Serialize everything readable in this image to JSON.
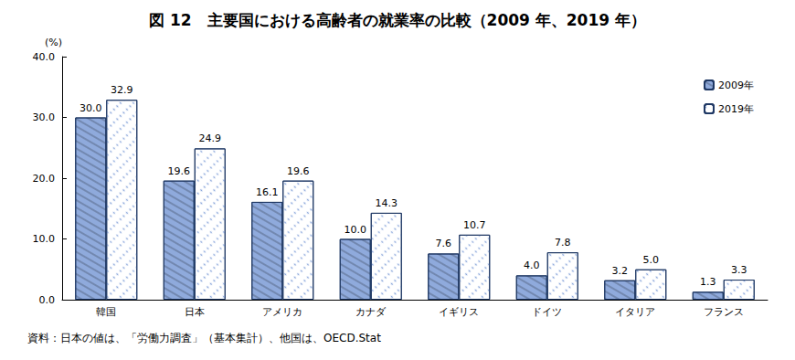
{
  "chart_data": {
    "type": "bar",
    "title": "図 12　主要国における高齢者の就業率の比較（2009 年、2019 年）",
    "ylabel": "(%)",
    "annotations": [
      "資料：日本の値は、「労働力調査」（基本集計）、他国は、OECD.Stat"
    ],
    "categories": [
      "韓国",
      "日本",
      "アメリカ",
      "カナダ",
      "イギリス",
      "ドイツ",
      "イタリア",
      "フランス"
    ],
    "series": [
      {
        "name": "2009年",
        "color": "#8faadc",
        "values": [
          30.0,
          19.6,
          16.1,
          10.0,
          7.6,
          4.0,
          3.2,
          1.3
        ],
        "value_labels": [
          "30.0",
          "19.6",
          "16.1",
          "10.0",
          "7.6",
          "4.0",
          "3.2",
          "1.3"
        ]
      },
      {
        "name": "2019年",
        "color": "#ffffff",
        "values": [
          32.9,
          24.9,
          19.6,
          14.3,
          10.7,
          7.8,
          5.0,
          3.3
        ],
        "value_labels": [
          "32.9",
          "24.9",
          "19.6",
          "14.3",
          "10.7",
          "7.8",
          "5.0",
          "3.3"
        ]
      }
    ],
    "ylim": [
      0,
      40
    ],
    "yticks": [
      {
        "value": 0,
        "label": "0.0"
      },
      {
        "value": 10,
        "label": "10.0"
      },
      {
        "value": 20,
        "label": "20.0"
      },
      {
        "value": 30,
        "label": "30.0"
      },
      {
        "value": 40,
        "label": "40.0"
      }
    ],
    "grid": false,
    "legend": "upper right",
    "data_labels": true
  }
}
